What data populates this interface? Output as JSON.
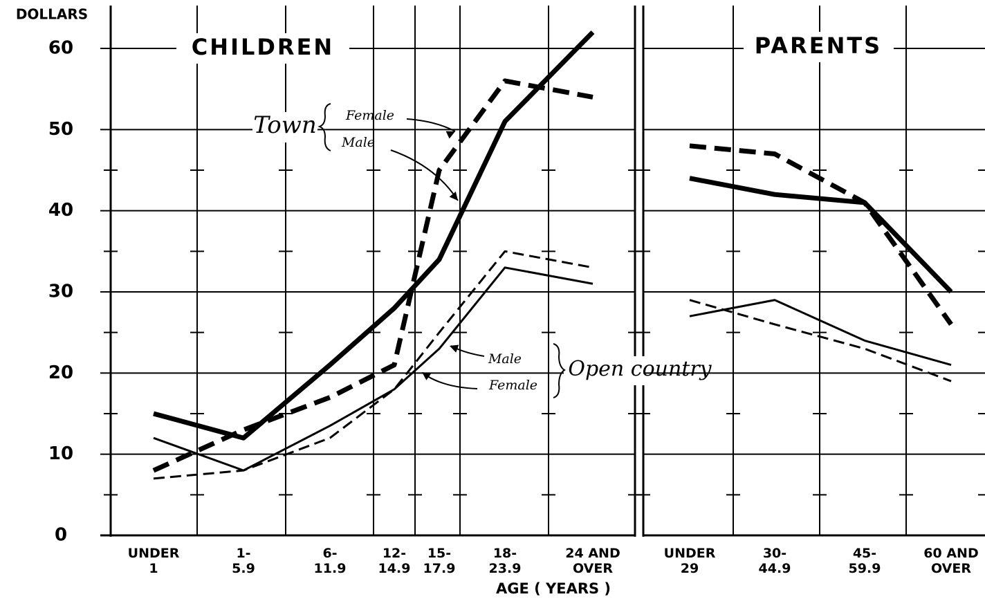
{
  "chart_data": [
    {
      "type": "line",
      "title": "CHILDREN",
      "ylabel": "DOLLARS",
      "xlabel": "AGE ( YEARS )",
      "categories": [
        "UNDER\n1",
        "1-\n5.9",
        "6-\n11.9",
        "12-\n14.9",
        "15-\n17.9",
        "18-\n23.9",
        "24 AND\nOVER"
      ],
      "ylim": [
        0,
        60
      ],
      "yticks": [
        0,
        10,
        20,
        30,
        40,
        50,
        60
      ],
      "grid": true,
      "series": [
        {
          "color": "#000000",
          "heavy": true,
          "dashed": false,
          "values": [
            15,
            12,
            21,
            28,
            34,
            51,
            62
          ]
        },
        {
          "color": "#000000",
          "heavy": true,
          "dashed": true,
          "values": [
            8,
            13,
            17,
            21,
            45,
            56,
            54
          ]
        },
        {
          "color": "#000000",
          "heavy": false,
          "dashed": false,
          "values": [
            12,
            8,
            13.5,
            18,
            23,
            33,
            31
          ]
        },
        {
          "color": "#000000",
          "heavy": false,
          "dashed": true,
          "values": [
            7,
            8,
            12,
            18,
            25,
            35,
            33
          ]
        }
      ],
      "annotations": [
        {
          "text": "Town"
        },
        {
          "text": "Female"
        },
        {
          "text": "Male"
        },
        {
          "text": "Male"
        },
        {
          "text": "Female"
        },
        {
          "text": "Open country"
        }
      ]
    },
    {
      "type": "line",
      "title": "PARENTS",
      "categories": [
        "UNDER\n29",
        "30-\n44.9",
        "45-\n59.9",
        "60 AND\nOVER"
      ],
      "ylim": [
        0,
        60
      ],
      "yticks": [
        0,
        10,
        20,
        30,
        40,
        50,
        60
      ],
      "grid": true,
      "series": [
        {
          "color": "#000000",
          "heavy": true,
          "dashed": false,
          "values": [
            44,
            42,
            41,
            30
          ]
        },
        {
          "color": "#000000",
          "heavy": true,
          "dashed": true,
          "values": [
            48,
            47,
            41,
            26
          ]
        },
        {
          "color": "#000000",
          "heavy": false,
          "dashed": false,
          "values": [
            27,
            29,
            24,
            21
          ]
        },
        {
          "color": "#000000",
          "heavy": false,
          "dashed": true,
          "values": [
            29,
            26,
            23,
            19
          ]
        }
      ]
    }
  ]
}
